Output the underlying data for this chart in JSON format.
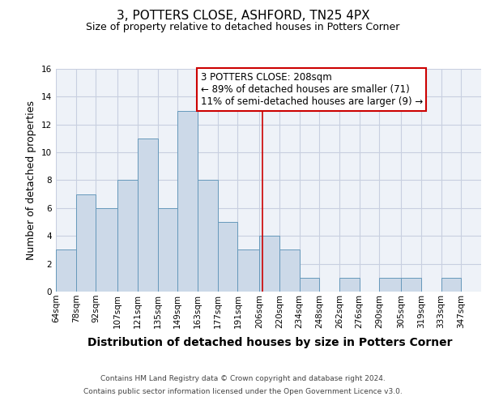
{
  "title": "3, POTTERS CLOSE, ASHFORD, TN25 4PX",
  "subtitle": "Size of property relative to detached houses in Potters Corner",
  "xlabel": "Distribution of detached houses by size in Potters Corner",
  "ylabel": "Number of detached properties",
  "bin_labels": [
    "64sqm",
    "78sqm",
    "92sqm",
    "107sqm",
    "121sqm",
    "135sqm",
    "149sqm",
    "163sqm",
    "177sqm",
    "191sqm",
    "206sqm",
    "220sqm",
    "234sqm",
    "248sqm",
    "262sqm",
    "276sqm",
    "290sqm",
    "305sqm",
    "319sqm",
    "333sqm",
    "347sqm"
  ],
  "bin_edges": [
    64,
    78,
    92,
    107,
    121,
    135,
    149,
    163,
    177,
    191,
    206,
    220,
    234,
    248,
    262,
    276,
    290,
    305,
    319,
    333,
    347,
    361
  ],
  "counts": [
    3,
    7,
    6,
    8,
    11,
    6,
    13,
    8,
    5,
    3,
    4,
    3,
    1,
    0,
    1,
    0,
    1,
    1,
    0,
    1,
    0
  ],
  "bar_facecolor": "#ccd9e8",
  "bar_edgecolor": "#6699bb",
  "vline_x": 208,
  "vline_color": "#cc0000",
  "annotation_line1": "3 POTTERS CLOSE: 208sqm",
  "annotation_line2": "← 89% of detached houses are smaller (71)",
  "annotation_line3": "11% of semi-detached houses are larger (9) →",
  "annotation_box_edgecolor": "#cc0000",
  "annotation_box_facecolor": "#ffffff",
  "ylim": [
    0,
    16
  ],
  "yticks": [
    0,
    2,
    4,
    6,
    8,
    10,
    12,
    14,
    16
  ],
  "background_color": "#ffffff",
  "grid_color": "#c8cfe0",
  "footer_line1": "Contains HM Land Registry data © Crown copyright and database right 2024.",
  "footer_line2": "Contains public sector information licensed under the Open Government Licence v3.0.",
  "title_fontsize": 11,
  "subtitle_fontsize": 9,
  "xlabel_fontsize": 10,
  "ylabel_fontsize": 9,
  "tick_fontsize": 7.5,
  "annotation_fontsize": 8.5,
  "footer_fontsize": 6.5
}
